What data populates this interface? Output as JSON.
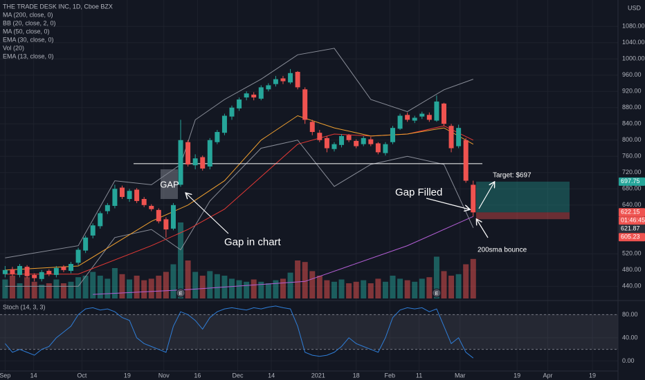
{
  "chart_data": {
    "type": "candlestick",
    "title": "THE TRADE DESK INC, 1D, Cboe BZX",
    "currency": "USD",
    "legend": [
      "MA (200, close, 0)",
      "BB (20, close, 2, 0)",
      "MA (50, close, 0)",
      "EMA (30, close, 0)",
      "Vol (20)",
      "EMA (13, close, 0)"
    ],
    "up_color": "#26a69a",
    "down_color": "#ef5350",
    "open": [
      470,
      482,
      468,
      488,
      468,
      458,
      478,
      468,
      488,
      478,
      498,
      528,
      565,
      588,
      625,
      638,
      683,
      655,
      678,
      655,
      638,
      628,
      605,
      582,
      690,
      795,
      738,
      758,
      735,
      795,
      818,
      858,
      878,
      905,
      912,
      902,
      925,
      938,
      952,
      942,
      968,
      925,
      845,
      818,
      805,
      778,
      788,
      812,
      798,
      790,
      802,
      792,
      768,
      795,
      828,
      862,
      848,
      858,
      862,
      848,
      890,
      835,
      785,
      800,
      690
    ],
    "high": [
      490,
      488,
      495,
      492,
      472,
      480,
      482,
      490,
      492,
      500,
      535,
      565,
      595,
      625,
      645,
      690,
      688,
      680,
      682,
      660,
      642,
      632,
      610,
      645,
      850,
      800,
      765,
      762,
      805,
      825,
      865,
      885,
      905,
      920,
      918,
      935,
      940,
      958,
      958,
      975,
      970,
      930,
      850,
      825,
      810,
      795,
      815,
      815,
      802,
      810,
      808,
      795,
      795,
      835,
      865,
      868,
      860,
      870,
      868,
      910,
      892,
      840,
      838,
      805,
      700
    ],
    "low": [
      462,
      465,
      462,
      460,
      452,
      452,
      465,
      462,
      475,
      472,
      492,
      522,
      558,
      582,
      618,
      632,
      655,
      648,
      645,
      635,
      625,
      595,
      560,
      578,
      685,
      735,
      728,
      725,
      728,
      790,
      812,
      850,
      872,
      898,
      898,
      898,
      920,
      932,
      938,
      938,
      925,
      840,
      812,
      795,
      770,
      772,
      782,
      795,
      780,
      785,
      785,
      765,
      762,
      790,
      825,
      845,
      842,
      852,
      845,
      845,
      835,
      770,
      780,
      695,
      612
    ],
    "close": [
      480,
      470,
      490,
      465,
      460,
      475,
      470,
      485,
      480,
      495,
      530,
      560,
      590,
      620,
      640,
      680,
      660,
      675,
      650,
      640,
      630,
      600,
      580,
      640,
      800,
      740,
      755,
      730,
      800,
      820,
      860,
      880,
      900,
      915,
      905,
      930,
      935,
      950,
      945,
      965,
      930,
      850,
      820,
      800,
      780,
      790,
      810,
      800,
      785,
      805,
      790,
      770,
      790,
      830,
      860,
      850,
      855,
      865,
      850,
      895,
      840,
      780,
      830,
      700,
      622
    ],
    "volume": [
      2.5,
      3,
      2,
      2.8,
      2.2,
      1.8,
      2,
      2.5,
      2,
      2.2,
      2.8,
      3,
      3.5,
      3,
      2.6,
      4,
      3.2,
      2.5,
      3,
      2.4,
      2.6,
      3,
      3.5,
      4.5,
      10,
      5,
      3.5,
      3,
      3.6,
      3.2,
      3,
      2.6,
      2.4,
      2.2,
      2.5,
      2.2,
      2,
      2.4,
      2.6,
      3.4,
      5,
      4.8,
      3.6,
      3,
      2.4,
      2.2,
      2.5,
      2,
      2.2,
      2.4,
      2,
      2.6,
      2.2,
      3,
      2.6,
      2.4,
      2.2,
      2.6,
      2.8,
      5.5,
      3.6,
      3,
      3.2,
      4.5,
      5.2
    ],
    "overlays": [
      {
        "color": "#b45fd6",
        "x": [
          12,
          25,
          41,
          55,
          64
        ],
        "values": [
          420,
          432,
          452,
          540,
          612
        ]
      },
      {
        "color": "#8a8e99",
        "x": [
          0,
          10,
          15,
          20,
          24,
          26,
          30,
          35,
          40,
          45,
          50,
          55,
          60,
          64
        ],
        "values": [
          510,
          540,
          700,
          690,
          740,
          850,
          900,
          950,
          1010,
          1026,
          900,
          870,
          924,
          950
        ]
      },
      {
        "color": "#8a8e99",
        "x": [
          0,
          10,
          15,
          20,
          24,
          28,
          35,
          40,
          45,
          50,
          55,
          60,
          64
        ],
        "values": [
          440,
          440,
          560,
          580,
          530,
          650,
          780,
          800,
          686,
          740,
          760,
          740,
          584
        ]
      },
      {
        "color": "#e53935",
        "x": [
          0,
          10,
          20,
          25,
          30,
          35,
          40,
          45,
          50,
          55,
          60,
          64
        ],
        "values": [
          470,
          470,
          540,
          580,
          630,
          710,
          790,
          815,
          810,
          815,
          835,
          800
        ]
      },
      {
        "color": "#f0a030",
        "x": [
          0,
          10,
          20,
          25,
          30,
          35,
          40,
          45,
          50,
          55,
          60,
          64
        ],
        "values": [
          480,
          490,
          600,
          640,
          700,
          800,
          860,
          830,
          810,
          815,
          830,
          790
        ]
      }
    ],
    "xlim": [
      -0.7,
      83.8
    ],
    "xticks": [
      {
        "value": 0,
        "label": "Sep"
      },
      {
        "value": 3.9,
        "label": "14"
      },
      {
        "value": 10.5,
        "label": "Oct"
      },
      {
        "value": 16.7,
        "label": "19"
      },
      {
        "value": 21.7,
        "label": "Nov"
      },
      {
        "value": 26.3,
        "label": "16"
      },
      {
        "value": 31.8,
        "label": "Dec"
      },
      {
        "value": 36.4,
        "label": "14"
      },
      {
        "value": 42.8,
        "label": "2021"
      },
      {
        "value": 48,
        "label": "18"
      },
      {
        "value": 52.6,
        "label": "Feb"
      },
      {
        "value": 56.6,
        "label": "11"
      },
      {
        "value": 62.2,
        "label": "Mar"
      },
      {
        "value": 70,
        "label": "19"
      },
      {
        "value": 74.2,
        "label": "Apr"
      },
      {
        "value": 80.3,
        "label": "19"
      }
    ],
    "ylim": [
      410,
      1145
    ],
    "yticks": [
      {
        "value": 440,
        "label": "440.00"
      },
      {
        "value": 480,
        "label": "480.00"
      },
      {
        "value": 520,
        "label": "520.00"
      },
      {
        "value": 640,
        "label": "640.00"
      },
      {
        "value": 680,
        "label": "680.00"
      },
      {
        "value": 720,
        "label": "720.00"
      },
      {
        "value": 760,
        "label": "760.00"
      },
      {
        "value": 800,
        "label": "800.00"
      },
      {
        "value": 840,
        "label": "840.00"
      },
      {
        "value": 880,
        "label": "880.00"
      },
      {
        "value": 920,
        "label": "920.00"
      },
      {
        "value": 960,
        "label": "960.00"
      },
      {
        "value": 1000,
        "label": "1000.00"
      },
      {
        "value": 1040,
        "label": "1040.00"
      },
      {
        "value": 1080,
        "label": "1080.00"
      }
    ],
    "price_tags": [
      {
        "value": 697.75,
        "label": "697.75",
        "color": "#26a69a"
      },
      {
        "value": 622.15,
        "label": "622.15",
        "color": "#ef5350"
      },
      {
        "value": 621.87,
        "label": "621.87",
        "color": "#2a2e39"
      },
      {
        "value": 605.23,
        "label": "605.23",
        "color": "#ef5350"
      }
    ],
    "countdown": "01:46:45",
    "support_line": 742,
    "earnings": [
      {
        "x": 24,
        "label": "E"
      },
      {
        "x": 59,
        "label": "E"
      }
    ],
    "annotations": {
      "gap": "GAP",
      "gap_in_chart": "Gap in chart",
      "gap_filled": "Gap Filled",
      "target": "Target: $697",
      "bounce": "200sma bounce"
    },
    "stoch": {
      "title": "Stoch (14, 3, 3)",
      "color": "#2f7ed8",
      "values": [
        30,
        15,
        20,
        15,
        10,
        20,
        25,
        40,
        50,
        60,
        80,
        90,
        92,
        88,
        90,
        85,
        75,
        70,
        40,
        30,
        25,
        20,
        15,
        60,
        85,
        80,
        70,
        55,
        75,
        85,
        90,
        92,
        90,
        88,
        92,
        90,
        93,
        95,
        92,
        90,
        60,
        15,
        10,
        8,
        10,
        15,
        25,
        40,
        30,
        25,
        20,
        15,
        40,
        75,
        88,
        92,
        90,
        92,
        85,
        90,
        60,
        30,
        40,
        15,
        5
      ],
      "ylim": [
        -15,
        102
      ],
      "yticks": [
        {
          "value": 0,
          "label": "0.00"
        },
        {
          "value": 40,
          "label": "40.00"
        },
        {
          "value": 80,
          "label": "80.00"
        }
      ],
      "band": [
        20,
        80
      ]
    }
  }
}
